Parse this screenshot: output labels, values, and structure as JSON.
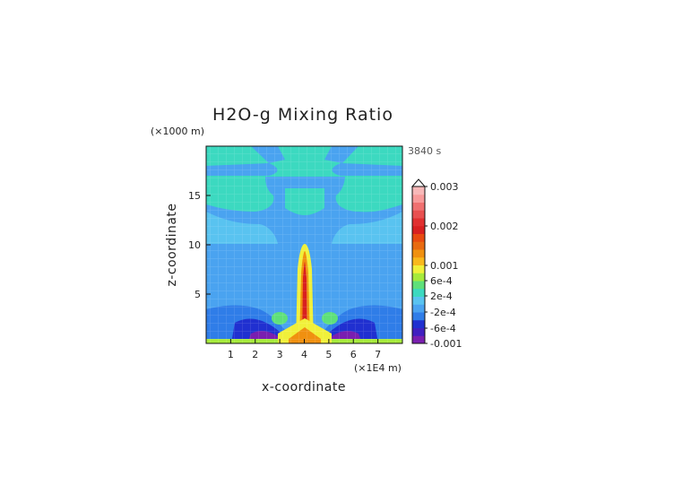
{
  "chart_data": {
    "type": "heatmap",
    "title": "H2O-g Mixing Ratio",
    "time_label": "3840 s",
    "xlabel": "x-coordinate",
    "ylabel": "z-coordinate",
    "x_unit": "(×1E4 m)",
    "z_unit": "(×1000 m)",
    "xlim": [
      0,
      8
    ],
    "ylim": [
      0,
      20
    ],
    "x_ticks": [
      "1",
      "2",
      "3",
      "4",
      "5",
      "6",
      "7"
    ],
    "z_ticks": [
      "5",
      "10",
      "15"
    ],
    "x_tick_values": [
      1,
      2,
      3,
      4,
      5,
      6,
      7
    ],
    "z_tick_values": [
      5,
      10,
      15
    ],
    "colorbar": {
      "labels": [
        "0.003",
        "0.002",
        "0.001",
        "6e-4",
        "2e-4",
        "-2e-4",
        "-6e-4",
        "-0.001"
      ],
      "colors": [
        "#7a1fb0",
        "#4020c0",
        "#2030d0",
        "#2f7de8",
        "#4aa3f0",
        "#59c3f0",
        "#3cd9c0",
        "#5ee07a",
        "#a6ea3c",
        "#f0f03a",
        "#f8b81c",
        "#f09010",
        "#e86a10",
        "#e84a10",
        "#d82020",
        "#e03030",
        "#e85050",
        "#f07070",
        "#f89a9a",
        "#f8b8b8"
      ]
    },
    "field_description_levels": {
      "background": -0.0002,
      "upper_bands": -0.0006,
      "lower_edge": 0.0002,
      "plume_core": 0.003
    }
  }
}
